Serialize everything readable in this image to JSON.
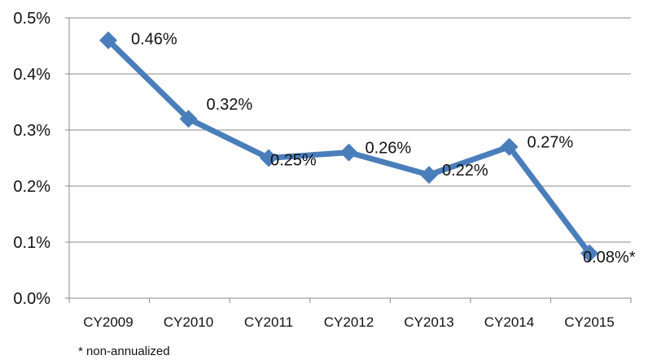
{
  "chart_data": {
    "type": "line",
    "categories": [
      "CY2009",
      "CY2010",
      "CY2011",
      "CY2012",
      "CY2013",
      "CY2014",
      "CY2015"
    ],
    "values": [
      0.46,
      0.32,
      0.25,
      0.26,
      0.22,
      0.27,
      0.08
    ],
    "data_labels": [
      "0.46%",
      "0.32%",
      "0.25%",
      "0.26%",
      "0.22%",
      "0.27%",
      "0.08%*"
    ],
    "ylim": [
      0,
      0.5
    ],
    "yticks": [
      0,
      0.1,
      0.2,
      0.3,
      0.4,
      0.5
    ],
    "ytick_labels": [
      "0.0%",
      "0.1%",
      "0.2%",
      "0.3%",
      "0.4%",
      "0.5%"
    ],
    "grid": "horizontal",
    "line_color": "#4a7ebb",
    "marker": "diamond",
    "title": "",
    "xlabel": "",
    "ylabel": ""
  },
  "footnote": "* non-annualized"
}
